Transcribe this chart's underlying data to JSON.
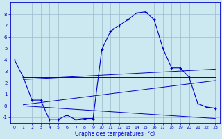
{
  "xlabel": "Graphe des températures (°c)",
  "bg_color": "#cce8f0",
  "line_color": "#0000cc",
  "grid_color": "#99bbcc",
  "ylim": [
    -1.5,
    9.0
  ],
  "xlim": [
    -0.5,
    23.5
  ],
  "yticks": [
    -1,
    0,
    1,
    2,
    3,
    4,
    5,
    6,
    7,
    8
  ],
  "xticks": [
    0,
    1,
    2,
    3,
    4,
    5,
    6,
    7,
    8,
    9,
    10,
    11,
    12,
    13,
    14,
    15,
    16,
    17,
    18,
    19,
    20,
    21,
    22,
    23
  ],
  "temp_line": {
    "x": [
      0,
      1,
      2,
      3,
      4,
      5,
      6,
      7,
      8,
      9,
      10,
      11,
      12,
      13,
      14,
      15,
      16,
      17,
      18,
      19,
      20,
      21,
      22,
      23
    ],
    "y": [
      4.0,
      2.5,
      0.5,
      0.5,
      -1.2,
      -1.2,
      -0.8,
      -1.2,
      -1.1,
      -1.1,
      4.9,
      6.5,
      7.0,
      7.5,
      8.1,
      8.2,
      7.5,
      5.0,
      3.3,
      3.3,
      2.5,
      0.2,
      -0.1,
      -0.2
    ]
  },
  "trend1": {
    "x": [
      1,
      23
    ],
    "y": [
      2.5,
      2.5
    ]
  },
  "trend2": {
    "x": [
      1,
      23
    ],
    "y": [
      2.3,
      3.2
    ]
  },
  "trend3": {
    "x": [
      1,
      23
    ],
    "y": [
      0.1,
      2.2
    ]
  },
  "trend4": {
    "x": [
      1,
      23
    ],
    "y": [
      0.0,
      -1.1
    ]
  }
}
